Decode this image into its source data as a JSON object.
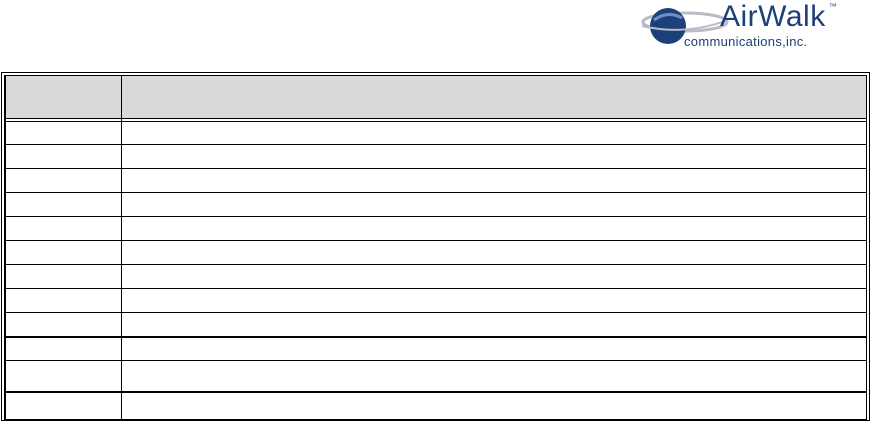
{
  "logo": {
    "brand": "AirWalk",
    "tm": "™",
    "subtitle": "communications,inc.",
    "color": "#1d3f7a"
  },
  "table": {
    "headers": [
      "",
      ""
    ],
    "header_bg": "#d9d9d9",
    "rows": [
      [
        "",
        ""
      ],
      [
        "",
        ""
      ],
      [
        "",
        ""
      ],
      [
        "",
        ""
      ],
      [
        "",
        ""
      ],
      [
        "",
        ""
      ],
      [
        "",
        ""
      ],
      [
        "",
        ""
      ],
      [
        "",
        ""
      ],
      [
        "",
        ""
      ],
      [
        "",
        ""
      ],
      [
        "",
        ""
      ]
    ]
  }
}
